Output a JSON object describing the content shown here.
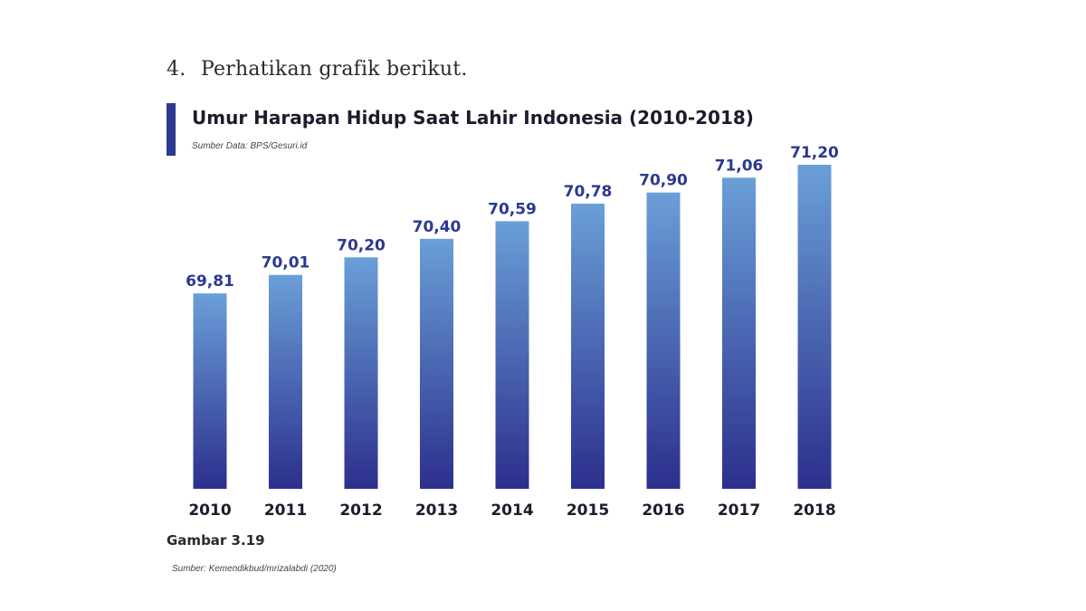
{
  "question": {
    "number": "4.",
    "text": "Perhatikan grafik berikut."
  },
  "figure": {
    "caption": "Gambar 3.19",
    "source": "Sumber: Kemendikbud/mrizalabdi (2020)"
  },
  "colors": {
    "accent": "#2b3990",
    "bar_top": "#6a9fd8",
    "bar_bottom": "#2c2f8c",
    "value_label": "#2b3990"
  },
  "chart_data": {
    "type": "bar",
    "title": "Umur Harapan Hidup Saat Lahir Indonesia (2010-2018)",
    "source_note": "Sumber Data: BPS/Gesuri.id",
    "categories": [
      "2010",
      "2011",
      "2012",
      "2013",
      "2014",
      "2015",
      "2016",
      "2017",
      "2018"
    ],
    "values": [
      69.81,
      70.01,
      70.2,
      70.4,
      70.59,
      70.78,
      70.9,
      71.06,
      71.2
    ],
    "value_labels": [
      "69,81",
      "70,01",
      "70,20",
      "70,40",
      "70,59",
      "70,78",
      "70,90",
      "71,06",
      "71,20"
    ],
    "xlabel": "",
    "ylabel": "",
    "ylim": [
      67.7,
      71.2
    ],
    "grid": false,
    "legend": "none"
  }
}
